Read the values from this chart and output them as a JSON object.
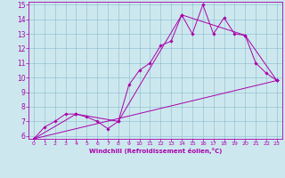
{
  "title": "",
  "xlabel": "Windchill (Refroidissement éolien,°C)",
  "ylabel": "",
  "bg_color": "#cce8ee",
  "line_color": "#aa00aa",
  "xlim": [
    -0.5,
    23.5
  ],
  "ylim": [
    5.8,
    15.2
  ],
  "xticks": [
    0,
    1,
    2,
    3,
    4,
    5,
    6,
    7,
    8,
    9,
    10,
    11,
    12,
    13,
    14,
    15,
    16,
    17,
    18,
    19,
    20,
    21,
    22,
    23
  ],
  "yticks": [
    6,
    7,
    8,
    9,
    10,
    11,
    12,
    13,
    14,
    15
  ],
  "series1": [
    [
      0,
      5.8
    ],
    [
      1,
      6.6
    ],
    [
      2,
      7.0
    ],
    [
      3,
      7.5
    ],
    [
      4,
      7.5
    ],
    [
      5,
      7.3
    ],
    [
      6,
      7.0
    ],
    [
      7,
      6.5
    ],
    [
      8,
      7.0
    ],
    [
      9,
      9.5
    ],
    [
      10,
      10.5
    ],
    [
      11,
      11.0
    ],
    [
      12,
      12.2
    ],
    [
      13,
      12.5
    ],
    [
      14,
      14.3
    ],
    [
      15,
      13.0
    ],
    [
      16,
      15.0
    ],
    [
      17,
      13.0
    ],
    [
      18,
      14.1
    ],
    [
      19,
      13.0
    ],
    [
      20,
      12.9
    ],
    [
      21,
      11.0
    ],
    [
      22,
      10.3
    ],
    [
      23,
      9.8
    ]
  ],
  "series2": [
    [
      0,
      5.8
    ],
    [
      4,
      7.5
    ],
    [
      8,
      7.0
    ],
    [
      14,
      14.3
    ],
    [
      20,
      12.9
    ],
    [
      23,
      9.8
    ]
  ],
  "series3": [
    [
      0,
      5.8
    ],
    [
      23,
      9.8
    ]
  ]
}
